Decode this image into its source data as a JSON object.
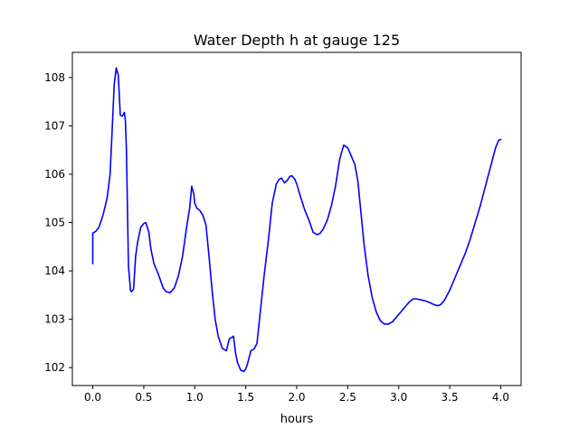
{
  "chart_data": {
    "type": "line",
    "title": "Water Depth h at gauge 125",
    "xlabel": "hours",
    "ylabel": "",
    "xlim": [
      -0.2,
      4.2
    ],
    "ylim": [
      101.63,
      108.52
    ],
    "grid": false,
    "x_ticks": [
      0.0,
      0.5,
      1.0,
      1.5,
      2.0,
      2.5,
      3.0,
      3.5,
      4.0
    ],
    "x_tick_labels": [
      "0.0",
      "0.5",
      "1.0",
      "1.5",
      "2.0",
      "2.5",
      "3.0",
      "3.5",
      "4.0"
    ],
    "y_ticks": [
      102,
      103,
      104,
      105,
      106,
      107,
      108
    ],
    "y_tick_labels": [
      "102",
      "103",
      "104",
      "105",
      "106",
      "107",
      "108"
    ],
    "series": [
      {
        "color": "#0000ff",
        "x": [
          0.0,
          0.0,
          0.0,
          0.03,
          0.06,
          0.1,
          0.14,
          0.17,
          0.19,
          0.21,
          0.23,
          0.25,
          0.27,
          0.29,
          0.31,
          0.32,
          0.33,
          0.35,
          0.37,
          0.38,
          0.4,
          0.42,
          0.44,
          0.47,
          0.5,
          0.52,
          0.55,
          0.57,
          0.6,
          0.64,
          0.69,
          0.72,
          0.76,
          0.8,
          0.84,
          0.88,
          0.92,
          0.95,
          0.97,
          0.99,
          1.0,
          1.02,
          1.05,
          1.08,
          1.11,
          1.14,
          1.17,
          1.2,
          1.23,
          1.27,
          1.31,
          1.34,
          1.36,
          1.38,
          1.4,
          1.42,
          1.45,
          1.48,
          1.5,
          1.52,
          1.55,
          1.58,
          1.61,
          1.65,
          1.68,
          1.72,
          1.76,
          1.8,
          1.83,
          1.85,
          1.88,
          1.91,
          1.93,
          1.95,
          1.98,
          2.0,
          2.02,
          2.05,
          2.08,
          2.12,
          2.16,
          2.2,
          2.23,
          2.26,
          2.3,
          2.34,
          2.38,
          2.42,
          2.46,
          2.5,
          2.52,
          2.54,
          2.57,
          2.6,
          2.63,
          2.66,
          2.7,
          2.74,
          2.78,
          2.82,
          2.86,
          2.9,
          2.94,
          2.98,
          3.02,
          3.06,
          3.1,
          3.14,
          3.18,
          3.22,
          3.26,
          3.3,
          3.35,
          3.38,
          3.41,
          3.45,
          3.5,
          3.55,
          3.6,
          3.65,
          3.7,
          3.75,
          3.8,
          3.85,
          3.9,
          3.95,
          3.98,
          4.0
        ],
        "y": [
          104.15,
          104.25,
          104.78,
          104.82,
          104.9,
          105.15,
          105.5,
          106.0,
          106.9,
          107.85,
          108.2,
          108.05,
          107.22,
          107.2,
          107.28,
          107.1,
          106.5,
          104.1,
          103.6,
          103.57,
          103.62,
          104.3,
          104.6,
          104.9,
          104.98,
          105.0,
          104.8,
          104.45,
          104.15,
          103.95,
          103.65,
          103.57,
          103.55,
          103.65,
          103.9,
          104.3,
          104.9,
          105.3,
          105.75,
          105.6,
          105.4,
          105.3,
          105.25,
          105.15,
          104.95,
          104.3,
          103.6,
          103.0,
          102.65,
          102.4,
          102.35,
          102.6,
          102.62,
          102.65,
          102.3,
          102.1,
          101.95,
          101.92,
          101.97,
          102.1,
          102.35,
          102.38,
          102.5,
          103.3,
          103.9,
          104.6,
          105.4,
          105.8,
          105.9,
          105.92,
          105.82,
          105.88,
          105.95,
          105.97,
          105.9,
          105.8,
          105.65,
          105.45,
          105.25,
          105.05,
          104.8,
          104.75,
          104.78,
          104.87,
          105.05,
          105.35,
          105.75,
          106.3,
          106.6,
          106.55,
          106.45,
          106.35,
          106.2,
          105.85,
          105.2,
          104.55,
          103.9,
          103.45,
          103.15,
          102.97,
          102.9,
          102.9,
          102.95,
          103.05,
          103.15,
          103.25,
          103.35,
          103.42,
          103.42,
          103.4,
          103.38,
          103.35,
          103.3,
          103.28,
          103.3,
          103.4,
          103.6,
          103.85,
          104.1,
          104.35,
          104.65,
          105.0,
          105.35,
          105.75,
          106.15,
          106.55,
          106.7,
          106.72
        ]
      }
    ]
  }
}
